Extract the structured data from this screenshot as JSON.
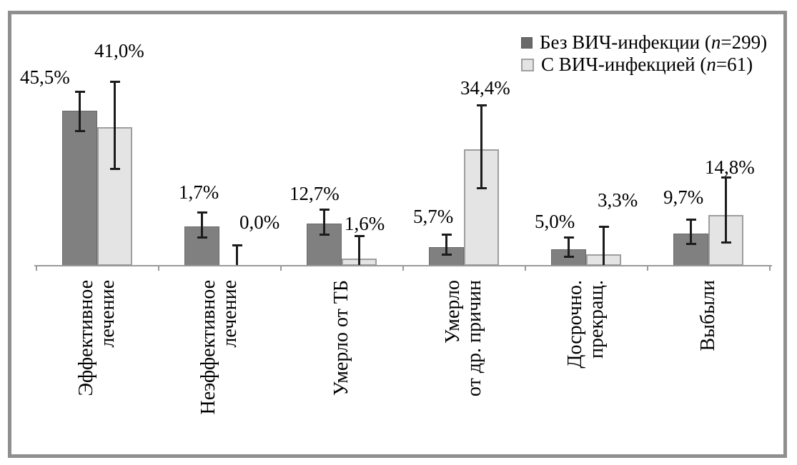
{
  "chart_data": {
    "type": "bar",
    "title": "",
    "xlabel": "",
    "ylabel": "",
    "axis_note": "no y-axis shown; x-axis baseline with 7 ticks; error bars (whiskers) on every bar",
    "legend_position": "top-right",
    "grid": false,
    "categories": [
      "Эффективное\nлечение",
      "Неэффективное\nлечение",
      "Умерло от ТБ",
      "Умерло\nот др. причин",
      "Досрочно.\nпрекращ.",
      "Выбыли"
    ],
    "series": [
      {
        "name": "Без ВИЧ-инфекции (n=299)",
        "color": "#808080",
        "values": [
          45.5,
          1.7,
          12.7,
          5.7,
          5.0,
          9.7
        ],
        "labels": [
          "45,5%",
          "1,7%",
          "12,7%",
          "5,7%",
          "5,0%",
          "9,7%"
        ]
      },
      {
        "name": "С ВИЧ-инфекцией (n=61)",
        "color": "#e4e4e4",
        "values": [
          41.0,
          0.0,
          1.6,
          34.4,
          3.3,
          14.8
        ],
        "labels": [
          "41,0%",
          "0,0%",
          "1,6%",
          "34,4%",
          "3,3%",
          "14,8%"
        ]
      }
    ]
  },
  "legend": {
    "items": [
      {
        "prefix": "Без ВИЧ-инфекции (",
        "n": "n",
        "suffix": "=299)"
      },
      {
        "prefix": "С ВИЧ-инфекцией (",
        "n": "n",
        "suffix": "=61)"
      }
    ]
  },
  "colors": {
    "frame": "#8f8f8f",
    "axis": "#9a9a9a",
    "bar_dark": "#808080",
    "bar_light": "#e4e4e4",
    "error_bar": "#1c1c1c"
  }
}
